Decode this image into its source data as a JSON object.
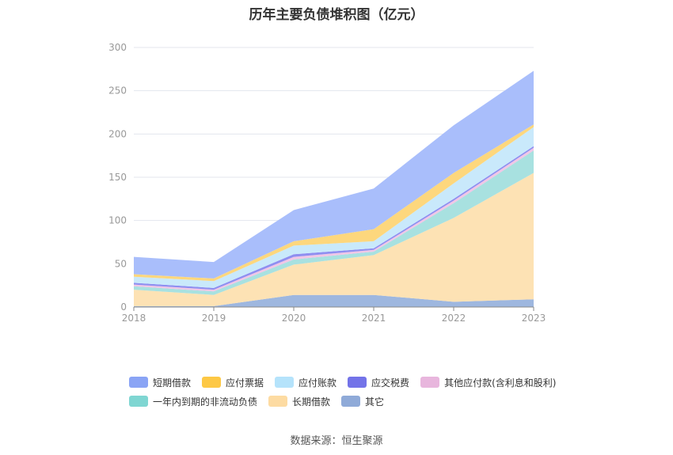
{
  "title": "历年主要负债堆积图（亿元）",
  "source": "数据来源：恒生聚源",
  "chart_data": {
    "type": "area",
    "stacked": true,
    "x": [
      "2018",
      "2019",
      "2020",
      "2021",
      "2022",
      "2023"
    ],
    "ylim": [
      0,
      300
    ],
    "yticks": [
      "0",
      "50",
      "100",
      "150",
      "200",
      "250",
      "300"
    ],
    "grid": true,
    "legend_position": "bottom",
    "series": [
      {
        "name": "其它",
        "color": "#9eb7df",
        "values": [
          1,
          1,
          14,
          14,
          6,
          9
        ]
      },
      {
        "name": "长期借款",
        "color": "#fde2b4",
        "values": [
          19,
          13,
          35,
          46,
          97,
          146
        ]
      },
      {
        "name": "一年内到期的非流动负债",
        "color": "#a8e1e0",
        "values": [
          4,
          4,
          6,
          4,
          17,
          26
        ]
      },
      {
        "name": "其他应付款(含利息和股利)",
        "color": "#f0c6e6",
        "values": [
          2,
          2,
          3,
          2,
          3,
          3
        ]
      },
      {
        "name": "应交税费",
        "color": "#8f8ff0",
        "values": [
          2,
          2,
          3,
          2,
          2,
          2
        ]
      },
      {
        "name": "应付账款",
        "color": "#c9e9fb",
        "values": [
          7,
          8,
          10,
          8,
          18,
          22
        ]
      },
      {
        "name": "应付票据",
        "color": "#fdd77d",
        "values": [
          3,
          3,
          5,
          14,
          12,
          3
        ]
      },
      {
        "name": "短期借款",
        "color": "#a9befb",
        "values": [
          20,
          19,
          36,
          47,
          55,
          62
        ]
      }
    ]
  },
  "legend": {
    "row1": [
      {
        "name": "短期借款",
        "color": "#8aa4f5"
      },
      {
        "name": "应付票据",
        "color": "#fdc845"
      },
      {
        "name": "应付账款",
        "color": "#b5e3fb"
      },
      {
        "name": "应交税费",
        "color": "#7373e8"
      },
      {
        "name": "其他应付款(含利息和股利)",
        "color": "#e8b6dd"
      }
    ],
    "row2": [
      {
        "name": "一年内到期的非流动负债",
        "color": "#7fd6d2"
      },
      {
        "name": "长期借款",
        "color": "#fddba2"
      },
      {
        "name": "其它",
        "color": "#8faad8"
      }
    ]
  }
}
